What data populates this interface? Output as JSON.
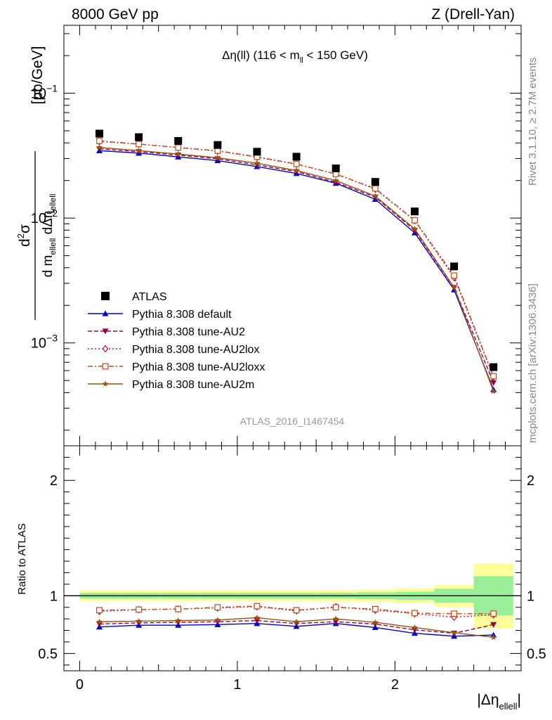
{
  "header": {
    "left": "8000 GeV pp",
    "right": "Z (Drell-Yan)"
  },
  "side_labels": {
    "rivet": "Rivet 3.1.10, ≥ 2.7M events",
    "mcplots": "mcplots.cern.ch [arXiv:1306.3436]"
  },
  "chart_data": {
    "type": "line",
    "title": "Δη(ll) (116 < m_ll < 150 GeV)",
    "analysis_label": "ATLAS_2016_I1467454",
    "xlabel": "|Δη_ellell|",
    "ylabel": "d²σ / d m_ellell dΔη_ellell [pb/GeV]",
    "ratio_ylabel": "Ratio to ATLAS",
    "xlim": [
      -0.1,
      2.8
    ],
    "ylim": [
      0.00015,
      0.35
    ],
    "yscale": "log",
    "ratio_ylim": [
      0.35,
      2.3
    ],
    "x_ticks": [
      "0",
      "1",
      "2"
    ],
    "y_ticks": [
      {
        "base": "10",
        "exp": "−1",
        "value": 0.1
      },
      {
        "base": "10",
        "exp": "−2",
        "value": 0.01
      },
      {
        "base": "10",
        "exp": "−3",
        "value": 0.001
      }
    ],
    "ratio_ticks": [
      "0.5",
      "1",
      "2"
    ],
    "legend_position": "bottom-left",
    "x": [
      0.125,
      0.375,
      0.625,
      0.875,
      1.125,
      1.375,
      1.625,
      1.875,
      2.125,
      2.375,
      2.625
    ],
    "data": {
      "name": "ATLAS",
      "values": [
        0.0475,
        0.0445,
        0.0415,
        0.0385,
        0.034,
        0.031,
        0.025,
        0.0195,
        0.0113,
        0.0041,
        0.00064
      ]
    },
    "bands": {
      "x_edges": [
        0,
        0.25,
        0.5,
        0.75,
        1.0,
        1.25,
        1.5,
        1.75,
        2.0,
        2.25,
        2.5,
        2.75
      ],
      "inner": [
        0.025,
        0.025,
        0.025,
        0.025,
        0.025,
        0.025,
        0.025,
        0.03,
        0.035,
        0.06,
        0.17
      ],
      "outer": [
        0.045,
        0.045,
        0.045,
        0.045,
        0.045,
        0.045,
        0.05,
        0.055,
        0.065,
        0.095,
        0.28
      ]
    },
    "series": [
      {
        "name": "Pythia 8.308 default",
        "color": "#0000cc",
        "marker": "triangle-up",
        "dash": "",
        "ratio": [
          0.73,
          0.745,
          0.745,
          0.75,
          0.76,
          0.735,
          0.76,
          0.725,
          0.675,
          0.65,
          0.66
        ]
      },
      {
        "name": "Pythia 8.308 tune-AU2",
        "color": "#990044",
        "marker": "triangle-down",
        "dash": "6,3",
        "ratio": [
          0.755,
          0.765,
          0.77,
          0.775,
          0.785,
          0.76,
          0.775,
          0.755,
          0.705,
          0.675,
          0.75
        ]
      },
      {
        "name": "Pythia 8.308 tune-AU2lox",
        "color": "#bb1133",
        "marker": "diamond-open",
        "dash": "2,3",
        "ratio": [
          0.865,
          0.88,
          0.885,
          0.895,
          0.905,
          0.87,
          0.905,
          0.875,
          0.845,
          0.815,
          0.835
        ]
      },
      {
        "name": "Pythia 8.308 tune-AU2loxx",
        "color": "#cc4411",
        "marker": "square-open",
        "dash": "7,3,2,3",
        "ratio": [
          0.875,
          0.88,
          0.885,
          0.9,
          0.91,
          0.875,
          0.9,
          0.885,
          0.85,
          0.845,
          0.845
        ]
      },
      {
        "name": "Pythia 8.308 tune-AU2m",
        "color": "#995511",
        "marker": "star",
        "dash": "",
        "ratio": [
          0.775,
          0.78,
          0.785,
          0.79,
          0.81,
          0.775,
          0.8,
          0.77,
          0.725,
          0.68,
          0.64
        ]
      }
    ]
  }
}
